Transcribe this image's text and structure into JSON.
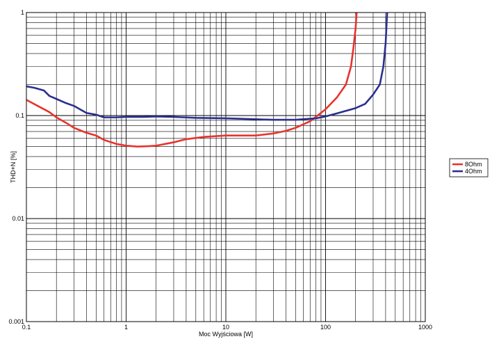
{
  "chart_data": {
    "type": "line",
    "xlabel": "Moc Wyjściowa [W]",
    "ylabel": "THD+N [%]",
    "x_scale": "log",
    "y_scale": "log",
    "xlim": [
      0.1,
      1000
    ],
    "ylim": [
      0.001,
      1
    ],
    "x_ticks": [
      "0.1",
      "1",
      "10",
      "100",
      "1000"
    ],
    "y_ticks": [
      "0.001",
      "0.01",
      "0.1",
      "1"
    ],
    "grid": true,
    "legend_position": "right",
    "series": [
      {
        "name": "8Ohm",
        "color": "#e8332d",
        "points": [
          [
            0.1,
            0.142
          ],
          [
            0.13,
            0.124
          ],
          [
            0.17,
            0.108
          ],
          [
            0.2,
            0.096
          ],
          [
            0.25,
            0.085
          ],
          [
            0.3,
            0.076
          ],
          [
            0.4,
            0.068
          ],
          [
            0.5,
            0.064
          ],
          [
            0.6,
            0.058
          ],
          [
            0.8,
            0.053
          ],
          [
            1.0,
            0.051
          ],
          [
            1.3,
            0.05
          ],
          [
            1.7,
            0.0505
          ],
          [
            2.0,
            0.051
          ],
          [
            3.0,
            0.055
          ],
          [
            4.0,
            0.059
          ],
          [
            6.0,
            0.062
          ],
          [
            10,
            0.064
          ],
          [
            20,
            0.064
          ],
          [
            30,
            0.067
          ],
          [
            40,
            0.071
          ],
          [
            50,
            0.076
          ],
          [
            70,
            0.088
          ],
          [
            100,
            0.115
          ],
          [
            130,
            0.15
          ],
          [
            160,
            0.2
          ],
          [
            180,
            0.3
          ],
          [
            190,
            0.45
          ],
          [
            200,
            0.7
          ],
          [
            205,
            1.0
          ]
        ]
      },
      {
        "name": "4Ohm",
        "color": "#2b2f8f",
        "points": [
          [
            0.1,
            0.192
          ],
          [
            0.12,
            0.186
          ],
          [
            0.15,
            0.175
          ],
          [
            0.17,
            0.155
          ],
          [
            0.2,
            0.145
          ],
          [
            0.25,
            0.132
          ],
          [
            0.3,
            0.124
          ],
          [
            0.4,
            0.106
          ],
          [
            0.5,
            0.102
          ],
          [
            0.6,
            0.096
          ],
          [
            0.8,
            0.096
          ],
          [
            1.0,
            0.097
          ],
          [
            1.5,
            0.097
          ],
          [
            2.0,
            0.098
          ],
          [
            3.0,
            0.097
          ],
          [
            5.0,
            0.095
          ],
          [
            10,
            0.094
          ],
          [
            20,
            0.092
          ],
          [
            30,
            0.091
          ],
          [
            50,
            0.091
          ],
          [
            80,
            0.094
          ],
          [
            100,
            0.098
          ],
          [
            130,
            0.105
          ],
          [
            200,
            0.118
          ],
          [
            250,
            0.13
          ],
          [
            300,
            0.16
          ],
          [
            350,
            0.2
          ],
          [
            380,
            0.3
          ],
          [
            400,
            0.5
          ],
          [
            410,
            0.8
          ],
          [
            415,
            1.0
          ]
        ]
      }
    ]
  }
}
